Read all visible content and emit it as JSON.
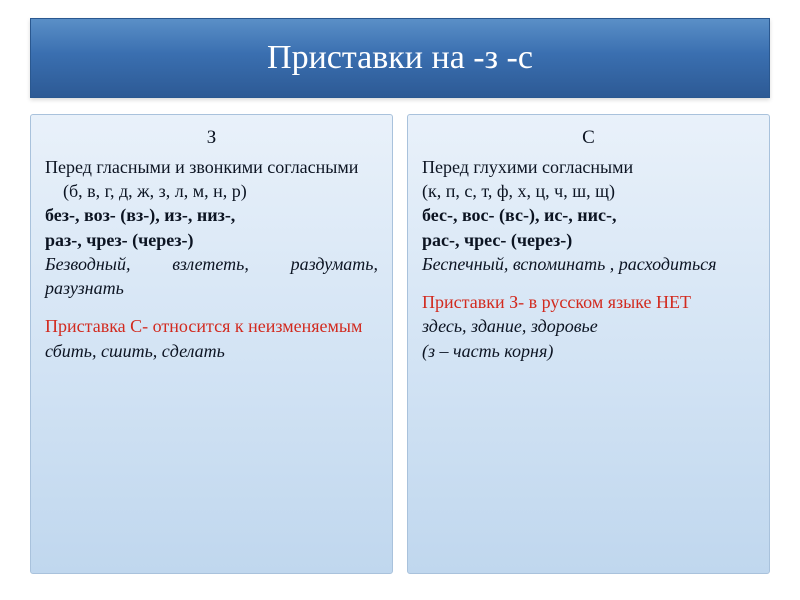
{
  "title": "Приставки на -з  -с",
  "colors": {
    "title_bg_top": "#5a8fc7",
    "title_bg_bottom": "#2d5a95",
    "title_text": "#ffffff",
    "col_bg_top": "#e9f1fa",
    "col_bg_bottom": "#c0d7ee",
    "col_border": "#a9c2dc",
    "body_text": "#0c1422",
    "accent_red": "#d22a1f"
  },
  "typography": {
    "title_fontsize": 34,
    "body_fontsize": 18,
    "font_family": "Times New Roman"
  },
  "left": {
    "header": "З",
    "rule": "Перед гласными и звонкими согласными",
    "letters": "(б, в, г, д, ж, з, л, м, н, р)",
    "prefixes1": "без-, воз- (вз-), из-, низ-,",
    "prefixes2": "раз-, чрез- (через-)",
    "examples": "Безводный, взлететь, раздумать, разузнать",
    "note": "Приставка С- относится к неизменяемым",
    "note_examples": "сбить, сшить, сделать"
  },
  "right": {
    "header": "С",
    "rule": "Перед глухими согласными",
    "letters": "(к, п, с, т, ф, х, ц, ч, ш, щ)",
    "prefixes1": "бес-, вос- (вс-), ис-, нис-,",
    "prefixes2": " рас-, чрес- (через-)",
    "examples": "Беспечный, вспоминать , расходиться",
    "note": "Приставки З-  в русском языке НЕТ",
    "note_examples1": "здесь, здание, здоровье",
    "note_examples2": "(з – часть корня)"
  }
}
